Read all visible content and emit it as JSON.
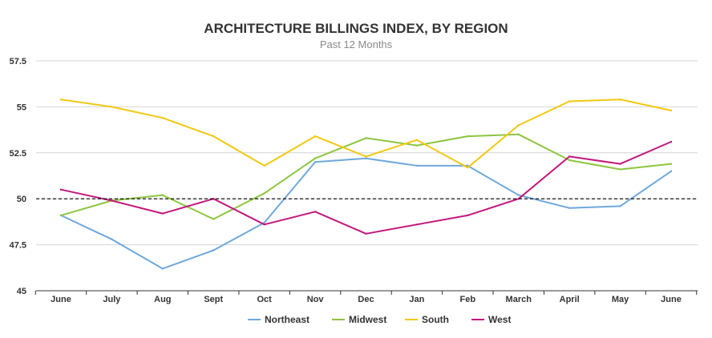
{
  "chart_data": {
    "type": "line",
    "title": "ARCHITECTURE BILLINGS INDEX, BY REGION",
    "subtitle": "Past 12 Months",
    "xlabel": "",
    "ylabel": "",
    "categories": [
      "June",
      "July",
      "Aug",
      "Sept",
      "Oct",
      "Nov",
      "Dec",
      "Jan",
      "Feb",
      "March",
      "April",
      "May",
      "June"
    ],
    "y_ticks": [
      "45",
      "47.5",
      "50",
      "52.5",
      "55",
      "57.5"
    ],
    "ylim": [
      45,
      57.5
    ],
    "reference_line": 50,
    "grid": true,
    "legend_position": "bottom",
    "series": [
      {
        "name": "Northeast",
        "color": "#6fa8dc",
        "values": [
          49.1,
          47.8,
          46.2,
          47.2,
          48.7,
          52.0,
          52.2,
          51.8,
          51.8,
          50.2,
          49.5,
          49.6,
          51.5
        ]
      },
      {
        "name": "Midwest",
        "color": "#8cc63f",
        "values": [
          49.1,
          49.9,
          50.2,
          48.9,
          50.3,
          52.2,
          53.3,
          52.9,
          53.4,
          53.5,
          52.1,
          51.6,
          51.9
        ]
      },
      {
        "name": "South",
        "color": "#f2c811",
        "values": [
          55.4,
          55.0,
          54.4,
          53.4,
          51.8,
          53.4,
          52.3,
          53.2,
          51.7,
          54.0,
          55.3,
          55.4,
          54.8
        ]
      },
      {
        "name": "West",
        "color": "#c2187b",
        "values": [
          50.5,
          49.9,
          49.2,
          50.0,
          48.6,
          49.3,
          48.1,
          48.6,
          49.1,
          50.0,
          52.3,
          51.9,
          53.1
        ]
      }
    ]
  }
}
